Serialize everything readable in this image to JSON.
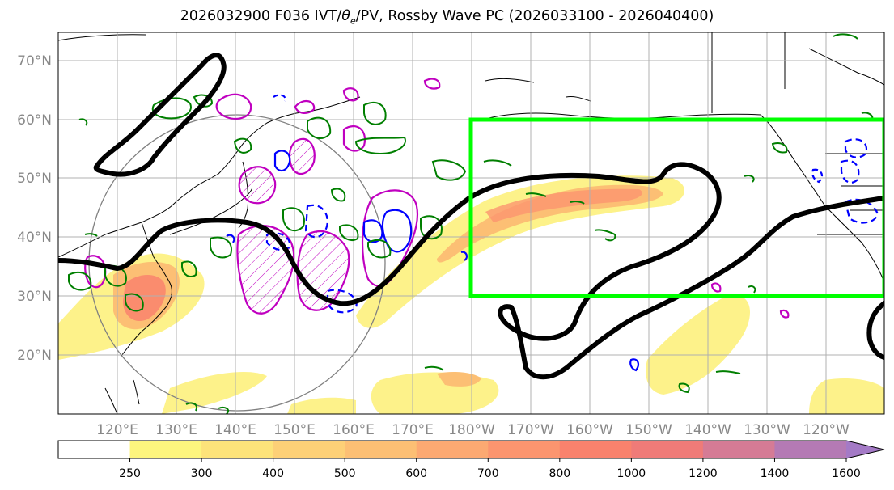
{
  "title": {
    "prefix": "2026032900 F036 IVT/",
    "theta": "θ",
    "theta_sub": "e",
    "suffix": "/PV, Rossby Wave PC (2026033100 - 2026040400)"
  },
  "lat_labels": [
    "70°N",
    "60°N",
    "50°N",
    "40°N",
    "30°N",
    "20°N"
  ],
  "lon_labels": [
    "120°E",
    "130°E",
    "140°E",
    "150°E",
    "160°E",
    "170°E",
    "180°W",
    "170°W",
    "160°W",
    "150°W",
    "140°W",
    "130°W",
    "120°W"
  ],
  "colorbar": {
    "ticks": [
      "250",
      "300",
      "400",
      "500",
      "600",
      "700",
      "800",
      "1000",
      "1200",
      "1400",
      "1600"
    ],
    "colors": [
      "#ffffff",
      "#fdf57e",
      "#fde37a",
      "#fdd077",
      "#fcbf74",
      "#fca972",
      "#fb956f",
      "#f9826d",
      "#ef7b78",
      "#d57b95",
      "#b47ab4",
      "#a47ac6"
    ]
  },
  "colors": {
    "ivt_low": "#fdf28a",
    "ivt_mid": "#fbbf74",
    "ivt_high": "#f78a6c",
    "box": "#00ff00",
    "jet": "#000000",
    "pv_pos": "#c000c0",
    "pv_neg": "#0000ff",
    "theta_e": "#007f00",
    "coast": "#000000",
    "grid": "#b0b0b0"
  },
  "map_extent": {
    "lon_min": 110,
    "lon_max": 250,
    "lat_min": 10,
    "lat_max": 75
  }
}
